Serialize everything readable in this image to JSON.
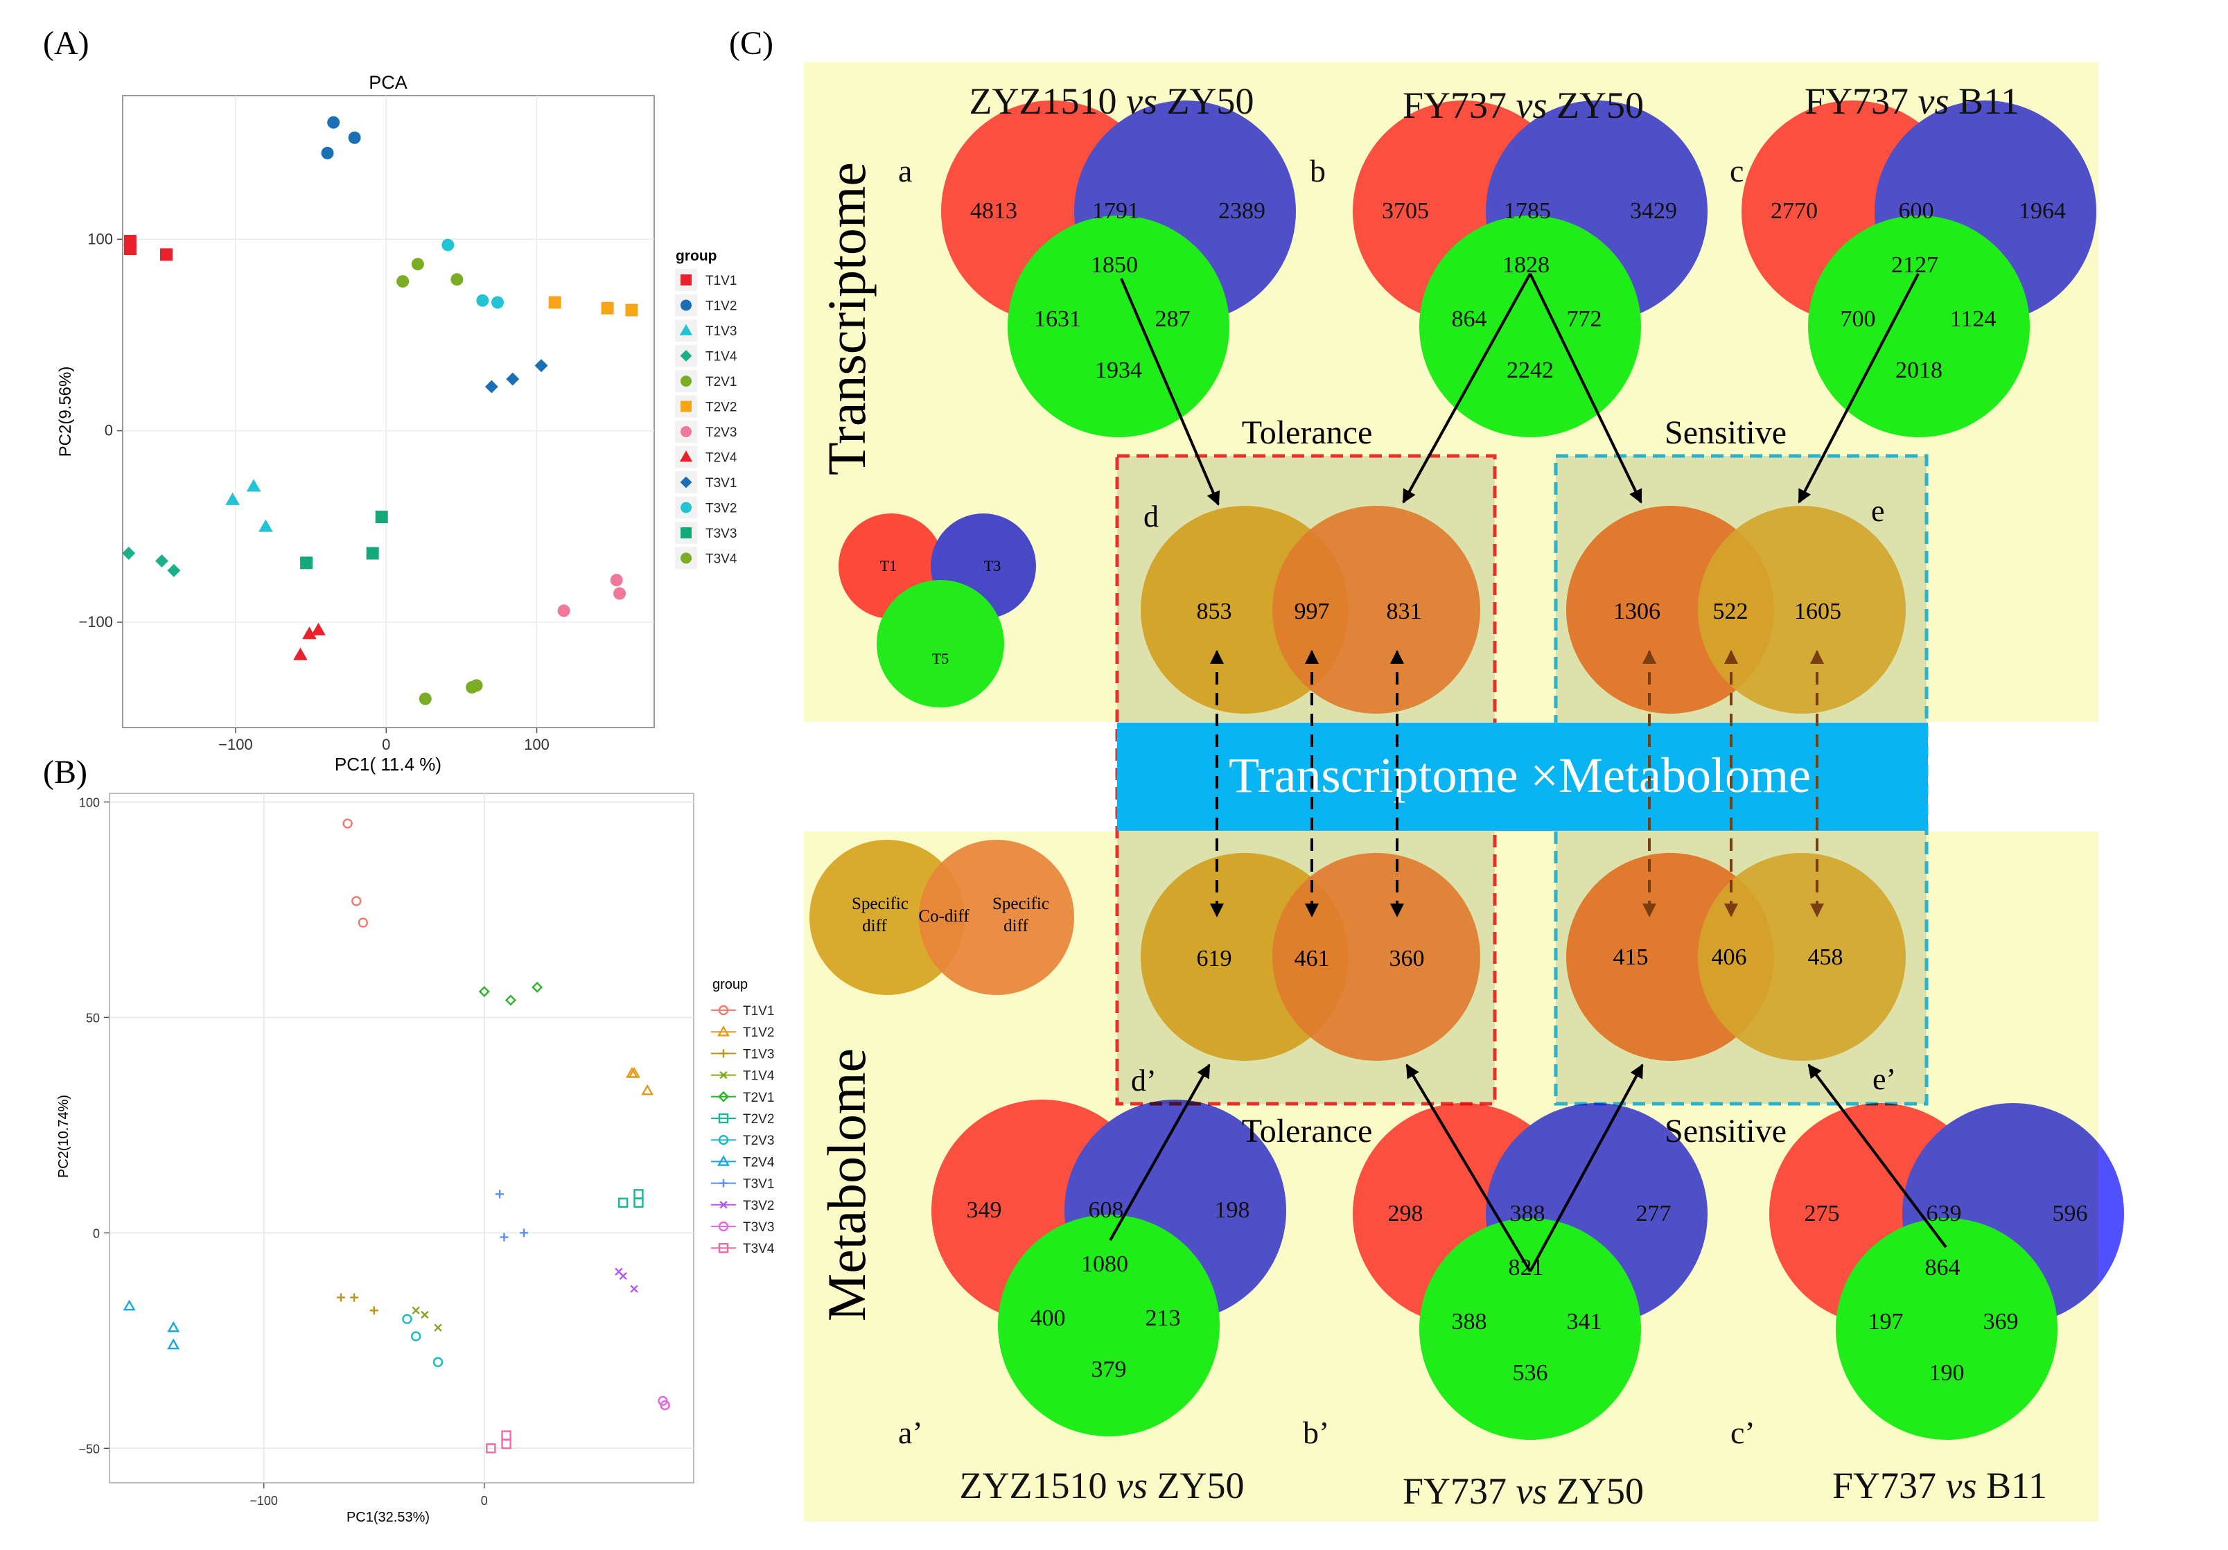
{
  "colors": {
    "panel_bg": "#fbfbc8",
    "red": "#ff3b3b",
    "blue": "#3b3bff",
    "green": "#19e619",
    "gold": "#d9aa2e",
    "orange": "#e8843a",
    "banner": "#0ab4f0",
    "tolerance_box": "#e8302a",
    "sensitive_box": "#2ab2cc"
  },
  "panel_labels": {
    "A": "(A)",
    "B": "(B)",
    "C": "(C)"
  },
  "chart_data": [
    {
      "type": "scatter",
      "panel": "A",
      "title": "PCA",
      "xlabel": "PC1( 11.4 %)",
      "ylabel": "PC2(9.56%)",
      "xlim": [
        -175,
        178
      ],
      "ylim": [
        -155,
        175
      ],
      "xticks": [
        -100,
        0,
        100
      ],
      "yticks": [
        -100,
        0,
        100
      ],
      "xtick_labels": [
        "−100",
        "0",
        "100"
      ],
      "ytick_labels": [
        "−100",
        "0",
        "100"
      ],
      "legend_title": "group",
      "series": [
        {
          "name": "T1V1",
          "color": "#e8212b",
          "shape": "square",
          "x": [
            -170,
            -170,
            -146
          ],
          "y": [
            99,
            95,
            92
          ]
        },
        {
          "name": "T1V2",
          "color": "#1a6fb5",
          "shape": "circle",
          "x": [
            -35,
            -39,
            -21
          ],
          "y": [
            161,
            145,
            153
          ]
        },
        {
          "name": "T1V3",
          "color": "#22c3d3",
          "shape": "triangle",
          "x": [
            -88,
            -102,
            -80
          ],
          "y": [
            -29,
            -36,
            -50
          ]
        },
        {
          "name": "T1V4",
          "color": "#1bb08a",
          "shape": "diamond",
          "x": [
            -171,
            -149,
            -141
          ],
          "y": [
            -64,
            -68,
            -73
          ]
        },
        {
          "name": "T2V1",
          "color": "#7aad24",
          "shape": "circle",
          "x": [
            21,
            11,
            47
          ],
          "y": [
            87,
            78,
            79
          ]
        },
        {
          "name": "T2V2",
          "color": "#f5a515",
          "shape": "square",
          "x": [
            112,
            147,
            163
          ],
          "y": [
            67,
            64,
            63
          ]
        },
        {
          "name": "T2V3",
          "color": "#f0789a",
          "shape": "circle",
          "x": [
            153,
            155,
            118
          ],
          "y": [
            -78,
            -85,
            -94
          ]
        },
        {
          "name": "T2V4",
          "color": "#e8212b",
          "shape": "triangle",
          "x": [
            -45,
            -51,
            -57
          ],
          "y": [
            -104,
            -106,
            -117
          ]
        },
        {
          "name": "T3V1",
          "color": "#1a6fb5",
          "shape": "diamond",
          "x": [
            103,
            84,
            70
          ],
          "y": [
            34,
            27,
            23
          ]
        },
        {
          "name": "T3V2",
          "color": "#22c3d3",
          "shape": "circle",
          "x": [
            41,
            64,
            74
          ],
          "y": [
            97,
            68,
            67
          ]
        },
        {
          "name": "T3V3",
          "color": "#15a87a",
          "shape": "square",
          "x": [
            -3,
            -53,
            -9
          ],
          "y": [
            -45,
            -69,
            -64
          ]
        },
        {
          "name": "T3V4",
          "color": "#7aad24",
          "shape": "circle",
          "x": [
            26,
            60,
            57
          ],
          "y": [
            -140,
            -133,
            -134
          ]
        }
      ]
    },
    {
      "type": "scatter",
      "panel": "B",
      "title": "",
      "xlabel": "PC1(32.53%)",
      "ylabel": "PC2(10.74%)",
      "xlim": [
        -170,
        95
      ],
      "ylim": [
        -58,
        102
      ],
      "xticks": [
        -100,
        0
      ],
      "yticks": [
        -50,
        0,
        50,
        100
      ],
      "xtick_labels": [
        "−100",
        "0"
      ],
      "ytick_labels": [
        "−50",
        "0",
        "50",
        "100"
      ],
      "legend_title": "group",
      "series": [
        {
          "name": "T1V1",
          "color": "#ef7a70",
          "shape": "circle-open",
          "x": [
            -62,
            -58,
            -55
          ],
          "y": [
            95,
            77,
            72
          ]
        },
        {
          "name": "T1V2",
          "color": "#e59a1a",
          "shape": "triangle-open",
          "x": [
            67,
            68,
            74
          ],
          "y": [
            37,
            37,
            33
          ]
        },
        {
          "name": "T1V3",
          "color": "#b9961a",
          "shape": "plus",
          "x": [
            -65,
            -59,
            -50
          ],
          "y": [
            -15,
            -15,
            -18
          ]
        },
        {
          "name": "T1V4",
          "color": "#7fa61d",
          "shape": "x",
          "x": [
            -31,
            -27,
            -21
          ],
          "y": [
            -18,
            -19,
            -22
          ]
        },
        {
          "name": "T2V1",
          "color": "#2bb32b",
          "shape": "diamond-open",
          "x": [
            0,
            12,
            24
          ],
          "y": [
            56,
            54,
            57
          ]
        },
        {
          "name": "T2V2",
          "color": "#19b894",
          "shape": "square-open",
          "x": [
            63,
            70,
            70
          ],
          "y": [
            7,
            9,
            7
          ]
        },
        {
          "name": "T2V3",
          "color": "#19b8c2",
          "shape": "circle-open",
          "x": [
            -35,
            -31,
            -21
          ],
          "y": [
            -20,
            -24,
            -30
          ]
        },
        {
          "name": "T2V4",
          "color": "#1aa6d9",
          "shape": "triangle-open",
          "x": [
            -161,
            -141,
            -141
          ],
          "y": [
            -17,
            -22,
            -26
          ]
        },
        {
          "name": "T3V1",
          "color": "#5a8ef0",
          "shape": "plus",
          "x": [
            7,
            9,
            18
          ],
          "y": [
            9,
            -1,
            0
          ]
        },
        {
          "name": "T3V2",
          "color": "#b85ae8",
          "shape": "x",
          "x": [
            61,
            63,
            68
          ],
          "y": [
            -9,
            -10,
            -13
          ]
        },
        {
          "name": "T3V3",
          "color": "#e26be0",
          "shape": "circle-open",
          "x": [
            81,
            82,
            82
          ],
          "y": [
            -39,
            -40,
            -40
          ]
        },
        {
          "name": "T3V4",
          "color": "#f06aa8",
          "shape": "square-open",
          "x": [
            3,
            10,
            10
          ],
          "y": [
            -50,
            -47,
            -49
          ]
        }
      ]
    }
  ],
  "panelC": {
    "side_labels": {
      "transcriptome": "Transcriptome",
      "metabolome": "Metabolome"
    },
    "banner": "Transcriptome ×Metabolome",
    "group_labels": {
      "tolerance_top": "Tolerance",
      "sensitive_top": "Sensitive",
      "tolerance_bottom": "Tolerance",
      "sensitive_bottom": "Sensitive"
    },
    "legend_triple": {
      "t1": "T1",
      "t3": "T3",
      "t5": "T5"
    },
    "legend_pair": {
      "left_1": "Specific",
      "left_2": "diff",
      "center": "Co-diff",
      "right_1": "Specific",
      "right_2": "diff"
    },
    "triples": [
      {
        "id": "a",
        "letter": "a",
        "title_1": "ZYZ1510 ",
        "title_vs": "vs",
        "title_2": " ZY50",
        "only_red": "4813",
        "red_blue": "1791",
        "only_blue": "2389",
        "all": "1850",
        "red_green": "1631",
        "blue_green": "287",
        "only_green": "1934"
      },
      {
        "id": "b",
        "letter": "b",
        "title_1": "FY737 ",
        "title_vs": "vs",
        "title_2": " ZY50",
        "only_red": "3705",
        "red_blue": "1785",
        "only_blue": "3429",
        "all": "1828",
        "red_green": "864",
        "blue_green": "772",
        "only_green": "2242"
      },
      {
        "id": "c",
        "letter": "c",
        "title_1": "FY737 ",
        "title_vs": "vs",
        "title_2": " B11",
        "only_red": "2770",
        "red_blue": "600",
        "only_blue": "1964",
        "all": "2127",
        "red_green": "700",
        "blue_green": "1124",
        "only_green": "2018"
      },
      {
        "id": "a2",
        "letter": "a’",
        "title_1": "ZYZ1510 ",
        "title_vs": "vs",
        "title_2": " ZY50",
        "only_red": "349",
        "red_blue": "608",
        "only_blue": "198",
        "all": "1080",
        "red_green": "400",
        "blue_green": "213",
        "only_green": "379"
      },
      {
        "id": "b2",
        "letter": "b’",
        "title_1": "FY737 ",
        "title_vs": "vs",
        "title_2": " ZY50",
        "only_red": "298",
        "red_blue": "388",
        "only_blue": "277",
        "all": "821",
        "red_green": "388",
        "blue_green": "341",
        "only_green": "536"
      },
      {
        "id": "c2",
        "letter": "c’",
        "title_1": "FY737 ",
        "title_vs": "vs",
        "title_2": " B11",
        "only_red": "275",
        "red_blue": "639",
        "only_blue": "596",
        "all": "864",
        "red_green": "197",
        "blue_green": "369",
        "only_green": "190"
      }
    ],
    "pairs": [
      {
        "id": "d",
        "letter": "d",
        "left": "853",
        "center": "997",
        "right": "831"
      },
      {
        "id": "e",
        "letter": "e",
        "left": "1306",
        "center": "522",
        "right": "1605"
      },
      {
        "id": "d2",
        "letter": "d’",
        "left": "619",
        "center": "461",
        "right": "360"
      },
      {
        "id": "e2",
        "letter": "e’",
        "left": "415",
        "center": "406",
        "right": "458"
      }
    ]
  }
}
